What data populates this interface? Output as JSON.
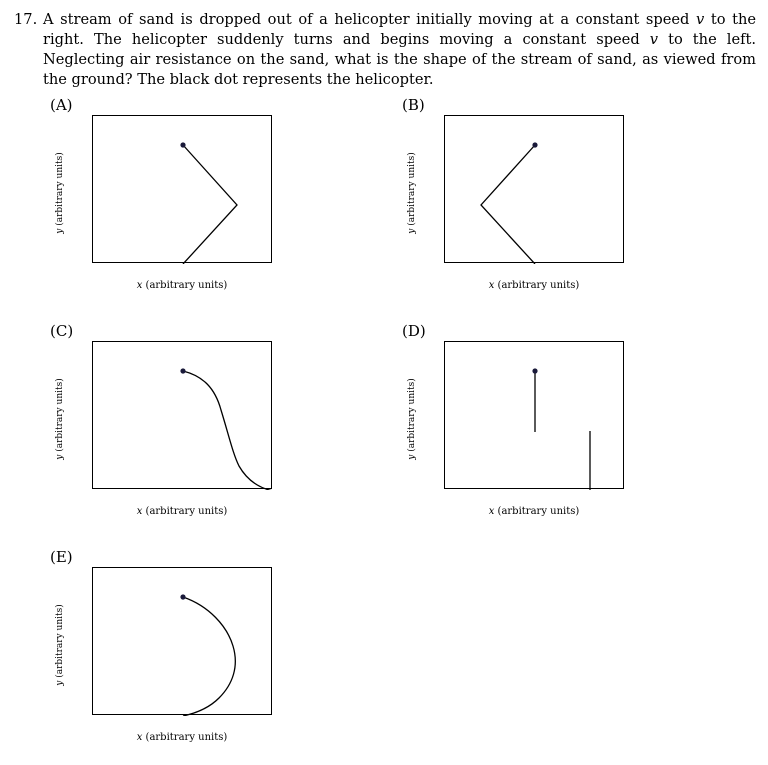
{
  "question": {
    "number": "17.",
    "text_part1": "A stream of sand is dropped out of a helicopter initially moving at a constant speed ",
    "var1": "v",
    "text_part2": " to the right. The helicopter suddenly turns and begins moving a constant speed ",
    "var2": "v",
    "text_part3": " to the left. Neglecting air resistance on the sand, what is the shape of the stream of sand, as viewed from the ground? The black dot represents the helicopter."
  },
  "axes": {
    "x_var": "x",
    "x_rest": " (arbitrary units)",
    "y_var": "y",
    "y_rest": " (arbitrary units)"
  },
  "options": [
    {
      "label": "(A)",
      "shape": "chevron-right-point"
    },
    {
      "label": "(B)",
      "shape": "chevron-left-point"
    },
    {
      "label": "(C)",
      "shape": "s-curve-down-right"
    },
    {
      "label": "(D)",
      "shape": "two-vertical-segments"
    },
    {
      "label": "(E)",
      "shape": "parabola-bulge-right"
    }
  ]
}
